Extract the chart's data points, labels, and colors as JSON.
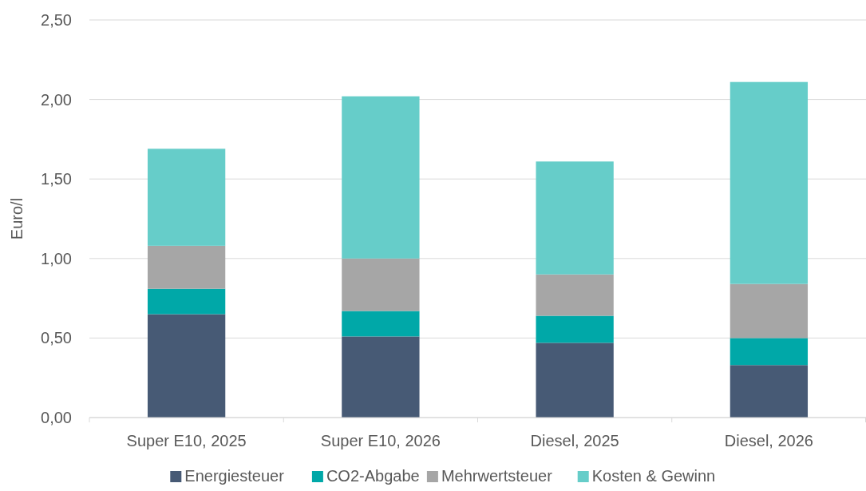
{
  "chart_data": {
    "type": "bar",
    "stacked": true,
    "ylabel": "Euro/l",
    "categories": [
      "Super E10, 2025",
      "Super E10, 2026",
      "Diesel, 2025",
      "Diesel, 2026"
    ],
    "series": [
      {
        "name": "Energiesteuer",
        "color": "#475a75",
        "values": [
          0.65,
          0.51,
          0.47,
          0.33
        ]
      },
      {
        "name": "CO2-Abgabe",
        "color": "#00a8a8",
        "values": [
          0.16,
          0.16,
          0.17,
          0.17
        ]
      },
      {
        "name": "Mehrwertsteuer",
        "color": "#a6a6a6",
        "values": [
          0.27,
          0.33,
          0.26,
          0.34
        ]
      },
      {
        "name": "Kosten & Gewinn",
        "color": "#66cdc9",
        "values": [
          0.61,
          1.02,
          0.71,
          1.27
        ]
      }
    ],
    "ylim": [
      0,
      2.5
    ],
    "yticks": [
      {
        "value": 0,
        "label": "0,00"
      },
      {
        "value": 0.5,
        "label": "0,50"
      },
      {
        "value": 1,
        "label": "1,00"
      },
      {
        "value": 1.5,
        "label": "1,50"
      },
      {
        "value": 2,
        "label": "2,00"
      },
      {
        "value": 2.5,
        "label": "2,50"
      }
    ],
    "grid": "y",
    "legend": "bottom"
  }
}
